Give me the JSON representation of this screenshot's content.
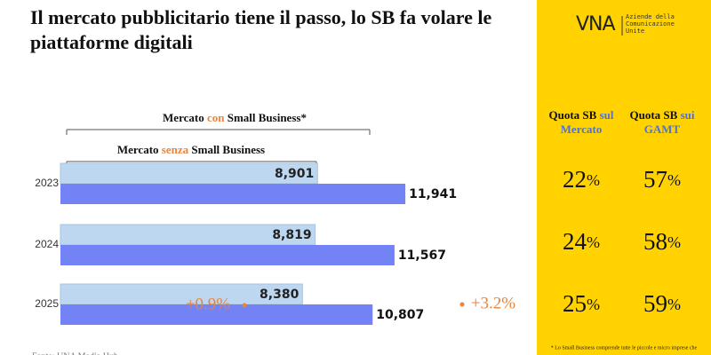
{
  "chart_data": {
    "type": "bar",
    "orientation": "horizontal",
    "title": "Il mercato pubblicitario tiene il passo, lo SB fa volare le piattaforme digitali",
    "categories": [
      "2023",
      "2024",
      "2025"
    ],
    "series": [
      {
        "name": [
          "Mercato",
          "senza",
          "Small Business"
        ],
        "color": "#bdd7f0",
        "values": [
          8901,
          8819,
          8380
        ],
        "value_labels": [
          "8,901",
          "8,819",
          "8,380"
        ]
      },
      {
        "name": [
          "Mercato",
          "con",
          "Small Business*"
        ],
        "color": "#7383f5",
        "values": [
          11941,
          11567,
          10807
        ],
        "value_labels": [
          "11,941",
          "11,567",
          "10,807"
        ]
      }
    ],
    "xlim": [
      0,
      16000
    ],
    "annotations": [
      "+0.9%",
      "+3.2%"
    ],
    "highlight_color": "#e8843c",
    "source": "Fonte: UNA Media Hub"
  },
  "side_panel": {
    "logo": "VNA",
    "logo_text": [
      "Aziende della",
      "Comunicazione",
      "Unite"
    ],
    "headers": [
      [
        "Quota SB",
        "sul",
        "Mercato"
      ],
      [
        "Quota SB",
        "sui",
        "GAMT"
      ]
    ],
    "unit": "%",
    "columns": [
      [
        22,
        24,
        25
      ],
      [
        57,
        58,
        59
      ]
    ],
    "footnote": "* Lo Small Business comprende tutte le piccole e micro imprese che"
  }
}
